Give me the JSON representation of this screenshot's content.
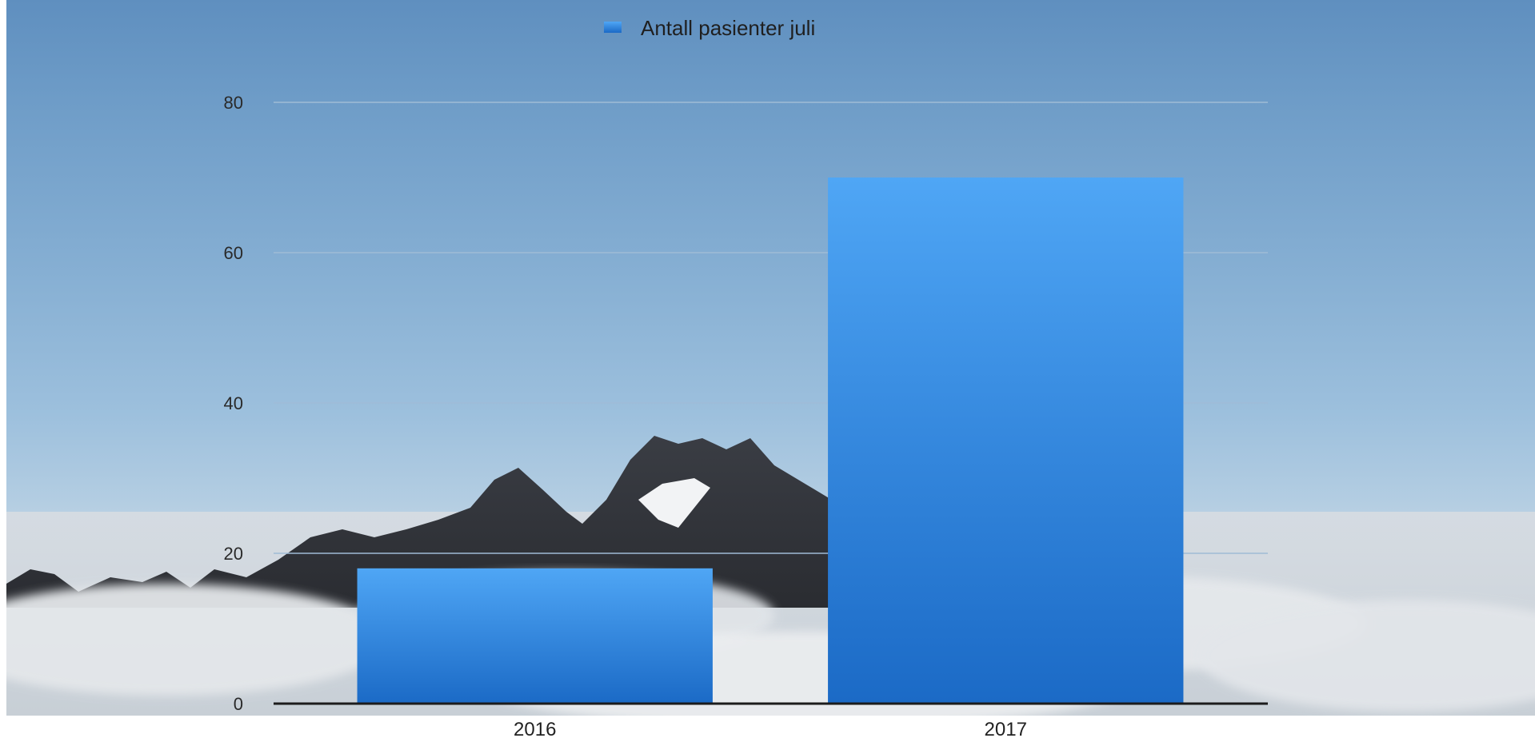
{
  "chart_data": {
    "type": "bar",
    "categories": [
      "2016",
      "2017"
    ],
    "series": [
      {
        "name": "Antall pasienter juli",
        "values": [
          18,
          70
        ]
      }
    ],
    "legend": "top-center",
    "ylim": [
      0,
      80
    ],
    "yticks": [
      0,
      20,
      40,
      60,
      80
    ],
    "grid": true,
    "colors": {
      "bar_top": "#4fa6f5",
      "bar_bottom": "#1b6ac6",
      "axis": "#1c1c1c",
      "grid": "#9fbcd6"
    }
  }
}
